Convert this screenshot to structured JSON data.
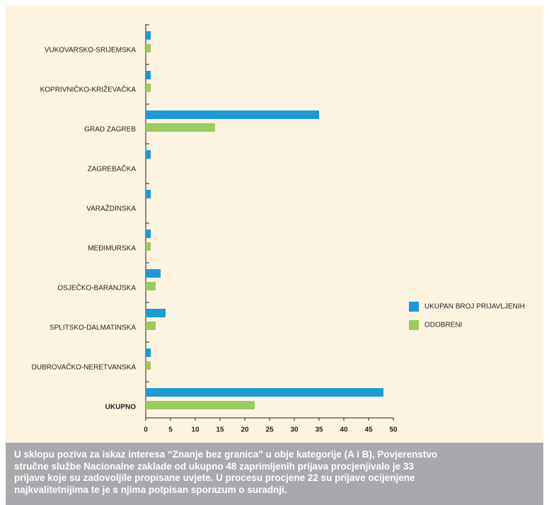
{
  "chart_data": {
    "type": "bar",
    "orientation": "horizontal",
    "categories": [
      "VUKOVARSKO-SRIJEMSKA",
      "KOPRIVNIČKO-KRIŽEVAČKA",
      "GRAD ZAGREB",
      "ZAGREBAČKA",
      "VARAŽDINSKA",
      "MEĐIMURSKA",
      "OSJEČKO-BARANJSKA",
      "SPLITSKO-DALMATINSKA",
      "DUBROVAČKO-NERETVANSKA",
      "UKUPNO"
    ],
    "series": [
      {
        "name": "UKUPAN BROJ PRIJAVLJENIH",
        "color": "#1a9ad6",
        "values": [
          1,
          1,
          35,
          1,
          1,
          1,
          3,
          4,
          1,
          48
        ]
      },
      {
        "name": "ODOBRENI",
        "color": "#9ccb5f",
        "values": [
          1,
          1,
          14,
          0,
          0,
          1,
          2,
          2,
          1,
          22
        ]
      }
    ],
    "xlim": [
      0,
      50
    ],
    "xticks": [
      0,
      5,
      10,
      15,
      20,
      25,
      30,
      35,
      40,
      45,
      50
    ],
    "legend": "right"
  },
  "caption": {
    "lines": [
      "U sklopu poziva za iskaz interesa “Znanje bez granica” u obje kategorije (A i B), Povjerenstvo",
      "stručne službe Nacionalne zaklade od ukupno 48 zaprimljenih prijava procjenjivalo je 33",
      "prijave koje su zadovoljile propisane uvjete. U procesu procjene 22 su prijave ocijenjene",
      "najkvalitetnijima te je s njima potpisan sporazum o suradnji."
    ]
  }
}
